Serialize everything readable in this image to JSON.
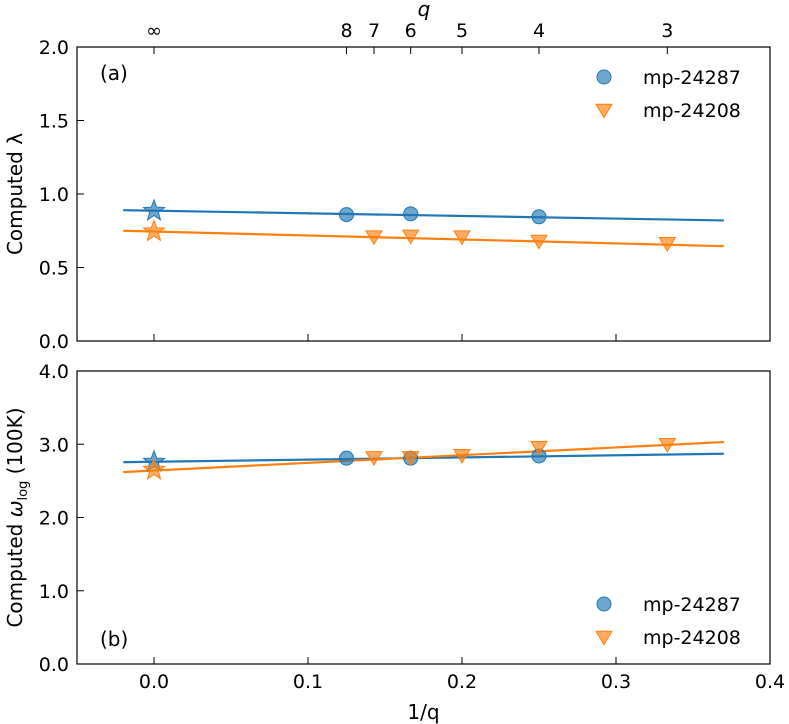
{
  "chart_data": [
    {
      "panel_label": "(a)",
      "type": "scatter",
      "ylabel": "Computed λ",
      "xlabel": "",
      "top_axis_label": "q",
      "ylim": [
        0.0,
        2.0
      ],
      "xlim": [
        -0.05,
        0.4
      ],
      "yticks": [
        "0.0",
        "0.5",
        "1.0",
        "1.5",
        "2.0"
      ],
      "ytick_values": [
        0.0,
        0.5,
        1.0,
        1.5,
        2.0
      ],
      "top_ticks": [
        {
          "x": 0.0,
          "label": "∞"
        },
        {
          "x": 0.125,
          "label": "8"
        },
        {
          "x": 0.142857,
          "label": "7"
        },
        {
          "x": 0.166667,
          "label": "6"
        },
        {
          "x": 0.2,
          "label": "5"
        },
        {
          "x": 0.25,
          "label": "4"
        },
        {
          "x": 0.333333,
          "label": "3"
        }
      ],
      "legend_position": "top-right",
      "series": [
        {
          "name": "mp-24287",
          "color": "#1f77b4",
          "marker": "circle",
          "points": [
            [
              0.125,
              0.86
            ],
            [
              0.166667,
              0.865
            ],
            [
              0.25,
              0.845
            ]
          ],
          "extrapolated": [
            0.0,
            0.885
          ],
          "fit": [
            [
              -0.02,
              0.89
            ],
            [
              0.37,
              0.82
            ]
          ]
        },
        {
          "name": "mp-24208",
          "color": "#ff7f0e",
          "marker": "triangle-down",
          "points": [
            [
              0.142857,
              0.71
            ],
            [
              0.166667,
              0.715
            ],
            [
              0.2,
              0.71
            ],
            [
              0.25,
              0.68
            ],
            [
              0.333333,
              0.665
            ]
          ],
          "extrapolated": [
            0.0,
            0.745
          ],
          "fit": [
            [
              -0.02,
              0.75
            ],
            [
              0.37,
              0.645
            ]
          ]
        }
      ]
    },
    {
      "panel_label": "(b)",
      "type": "scatter",
      "ylabel": "Computed ω_log (100K)",
      "ylabel_parts": {
        "pre": "Computed ",
        "symbol": "ω",
        "sub": "log",
        "post": " (100K)"
      },
      "xlabel": "1/q",
      "ylim": [
        0.0,
        4.0
      ],
      "xlim": [
        -0.05,
        0.4
      ],
      "yticks": [
        "0.0",
        "1.0",
        "2.0",
        "3.0",
        "4.0"
      ],
      "ytick_values": [
        0.0,
        1.0,
        2.0,
        3.0,
        4.0
      ],
      "xticks": [
        "0.0",
        "0.1",
        "0.2",
        "0.3",
        "0.4"
      ],
      "xtick_values": [
        0.0,
        0.1,
        0.2,
        0.3,
        0.4
      ],
      "legend_position": "bottom-right",
      "series": [
        {
          "name": "mp-24287",
          "color": "#1f77b4",
          "marker": "circle",
          "points": [
            [
              0.125,
              2.81
            ],
            [
              0.166667,
              2.81
            ],
            [
              0.25,
              2.84
            ]
          ],
          "extrapolated": [
            0.0,
            2.76
          ],
          "fit": [
            [
              -0.02,
              2.755
            ],
            [
              0.37,
              2.87
            ]
          ]
        },
        {
          "name": "mp-24208",
          "color": "#ff7f0e",
          "marker": "triangle-down",
          "points": [
            [
              0.142857,
              2.82
            ],
            [
              0.166667,
              2.82
            ],
            [
              0.2,
              2.85
            ],
            [
              0.25,
              2.96
            ],
            [
              0.333333,
              3.0
            ]
          ],
          "extrapolated": [
            0.0,
            2.65
          ],
          "fit": [
            [
              -0.02,
              2.62
            ],
            [
              0.37,
              3.03
            ]
          ]
        }
      ]
    }
  ]
}
